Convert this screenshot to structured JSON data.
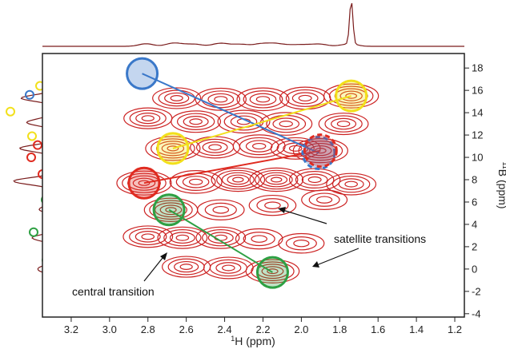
{
  "chart_data": {
    "type": "contour",
    "xlabel": {
      "sup": "1",
      "main": "H (ppm)"
    },
    "ylabel": {
      "sup": "11",
      "main": "B (ppm)"
    },
    "xlim": [
      3.35,
      1.15
    ],
    "ylim": [
      -4.3,
      19.3
    ],
    "x_ticks": [
      3.2,
      3.0,
      2.8,
      2.6,
      2.4,
      2.2,
      2.0,
      1.8,
      1.6,
      1.4,
      1.2
    ],
    "y_ticks": [
      -4,
      -2,
      0,
      2,
      4,
      6,
      8,
      10,
      12,
      14,
      16,
      18
    ],
    "grid": false,
    "contour_color": "#cc2222",
    "peaks": [
      {
        "x": 2.65,
        "y": 15.3,
        "amp": 0.5
      },
      {
        "x": 2.42,
        "y": 15.2,
        "amp": 0.7
      },
      {
        "x": 2.2,
        "y": 15.2,
        "amp": 0.8
      },
      {
        "x": 1.98,
        "y": 15.3,
        "amp": 0.7
      },
      {
        "x": 1.74,
        "y": 15.5,
        "amp": 1.0
      },
      {
        "x": 2.8,
        "y": 13.5,
        "amp": 0.5
      },
      {
        "x": 2.55,
        "y": 13.2,
        "amp": 0.6
      },
      {
        "x": 2.3,
        "y": 13.2,
        "amp": 0.8
      },
      {
        "x": 2.08,
        "y": 13.0,
        "amp": 0.8
      },
      {
        "x": 1.78,
        "y": 13.0,
        "amp": 0.6
      },
      {
        "x": 2.67,
        "y": 10.8,
        "amp": 1.0
      },
      {
        "x": 2.45,
        "y": 10.9,
        "amp": 0.6
      },
      {
        "x": 2.22,
        "y": 11.0,
        "amp": 0.8
      },
      {
        "x": 2.03,
        "y": 10.8,
        "amp": 0.6
      },
      {
        "x": 1.9,
        "y": 10.6,
        "amp": 1.0
      },
      {
        "x": 2.82,
        "y": 7.7,
        "amp": 1.0
      },
      {
        "x": 2.55,
        "y": 7.8,
        "amp": 0.8
      },
      {
        "x": 2.33,
        "y": 8.0,
        "amp": 0.9
      },
      {
        "x": 2.13,
        "y": 8.0,
        "amp": 0.9
      },
      {
        "x": 1.93,
        "y": 8.0,
        "amp": 0.7
      },
      {
        "x": 1.74,
        "y": 7.6,
        "amp": 0.6
      },
      {
        "x": 2.68,
        "y": 5.3,
        "amp": 0.9
      },
      {
        "x": 2.42,
        "y": 5.3,
        "amp": 0.4
      },
      {
        "x": 2.15,
        "y": 5.7,
        "amp": 0.4
      },
      {
        "x": 1.88,
        "y": 6.2,
        "amp": 0.3
      },
      {
        "x": 2.8,
        "y": 2.9,
        "amp": 0.6
      },
      {
        "x": 2.62,
        "y": 2.8,
        "amp": 0.6
      },
      {
        "x": 2.42,
        "y": 2.8,
        "amp": 0.6
      },
      {
        "x": 2.22,
        "y": 2.7,
        "amp": 0.4
      },
      {
        "x": 2.0,
        "y": 2.3,
        "amp": 0.3
      },
      {
        "x": 2.6,
        "y": 0.2,
        "amp": 0.5
      },
      {
        "x": 2.38,
        "y": 0.1,
        "amp": 0.6
      },
      {
        "x": 2.15,
        "y": -0.2,
        "amp": 0.9
      }
    ],
    "markers": [
      {
        "color": "#3a78c9",
        "x": 2.83,
        "y": 17.5,
        "style": "solid"
      },
      {
        "color": "#3a78c9",
        "x": 1.91,
        "y": 10.4,
        "style": "dashed"
      },
      {
        "color": "#f2e01b",
        "x": 2.67,
        "y": 10.8,
        "style": "solid"
      },
      {
        "color": "#f2e01b",
        "x": 1.74,
        "y": 15.5,
        "style": "solid"
      },
      {
        "color": "#e02b20",
        "x": 2.82,
        "y": 7.7,
        "style": "solid"
      },
      {
        "color": "#e02b20",
        "x": 1.9,
        "y": 10.6,
        "style": "dashed"
      },
      {
        "color": "#2ea043",
        "x": 2.69,
        "y": 5.3,
        "style": "solid"
      },
      {
        "color": "#2ea043",
        "x": 2.15,
        "y": -0.3,
        "style": "solid"
      }
    ],
    "connections": [
      {
        "color": "#3a78c9",
        "from": [
          2.83,
          17.5
        ],
        "to": [
          1.91,
          10.4
        ]
      },
      {
        "color": "#f2e01b",
        "from": [
          2.67,
          10.8
        ],
        "to": [
          1.74,
          15.5
        ]
      },
      {
        "color": "#e02b20",
        "from": [
          2.82,
          7.7
        ],
        "to": [
          1.9,
          10.6
        ]
      },
      {
        "color": "#2ea043",
        "from": [
          2.69,
          5.3
        ],
        "to": [
          2.15,
          -0.3
        ]
      }
    ],
    "projection_colors": [
      "#3a78c9",
      "#f2e01b",
      "#e02b20",
      "#2ea043"
    ],
    "annotations": [
      {
        "text": "satellite transitions"
      },
      {
        "text": "central transition"
      }
    ]
  }
}
